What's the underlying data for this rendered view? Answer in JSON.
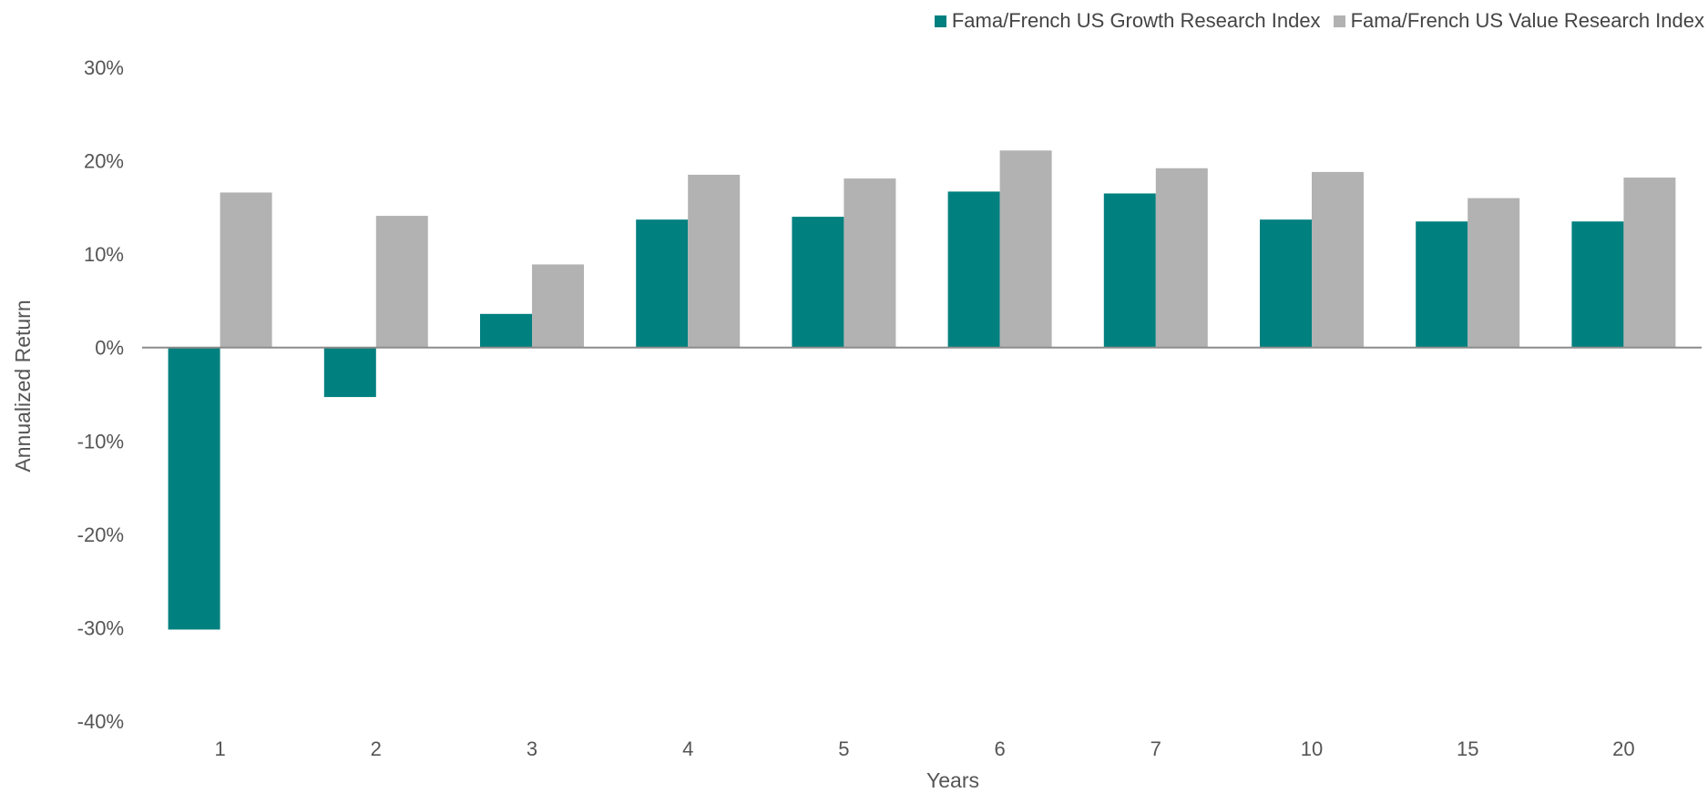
{
  "chart_data": {
    "type": "bar",
    "title": "",
    "xlabel": "Years",
    "ylabel": "Annualized Return",
    "categories": [
      "1",
      "2",
      "3",
      "4",
      "5",
      "6",
      "7",
      "10",
      "15",
      "20"
    ],
    "series": [
      {
        "name": "Fama/French US Growth Research Index",
        "color": "#00807F",
        "values": [
          -30.2,
          -5.3,
          3.6,
          13.7,
          14.0,
          16.7,
          16.5,
          13.7,
          13.5,
          13.5
        ]
      },
      {
        "name": "Fama/French US Value Research Index",
        "color": "#B2B2B2",
        "values": [
          16.6,
          14.1,
          8.9,
          18.5,
          18.1,
          21.1,
          19.2,
          18.8,
          16.0,
          18.2
        ]
      }
    ],
    "ylim": [
      -40,
      30
    ],
    "yticks": [
      30,
      20,
      10,
      0,
      -10,
      -20,
      -30,
      -40
    ],
    "ytick_labels": [
      "30%",
      "20%",
      "10%",
      "0%",
      "-10%",
      "-20%",
      "-30%",
      "-40%"
    ],
    "grid": false,
    "legend_position": "top-right"
  }
}
